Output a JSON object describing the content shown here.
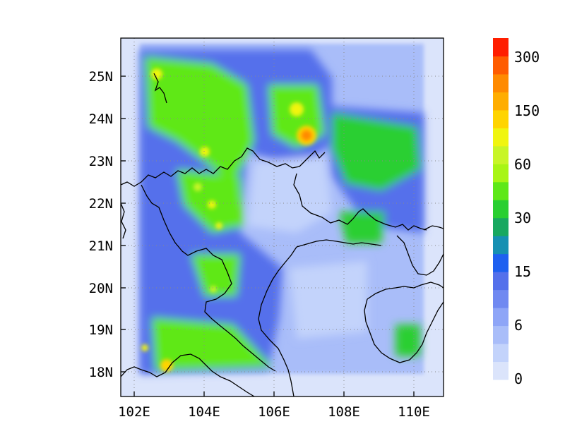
{
  "map": {
    "x_ticks": [
      "102E",
      "104E",
      "106E",
      "108E",
      "110E"
    ],
    "y_ticks": [
      "18N",
      "19N",
      "20N",
      "21N",
      "22N",
      "23N",
      "24N",
      "25N"
    ]
  },
  "colorbar": {
    "colors": [
      "#dbe4fb",
      "#c3d3fb",
      "#a9bdf9",
      "#8ea5f7",
      "#7089f1",
      "#5470eb",
      "#1e60f0",
      "#1690b2",
      "#18a860",
      "#29cf31",
      "#5ee818",
      "#a8f515",
      "#c8f528",
      "#f0f510",
      "#ffd400",
      "#ffad00",
      "#ff8a00",
      "#ff5c00",
      "#ff1e00"
    ],
    "labels": [
      "0",
      "6",
      "15",
      "30",
      "60",
      "150",
      "300"
    ]
  }
}
